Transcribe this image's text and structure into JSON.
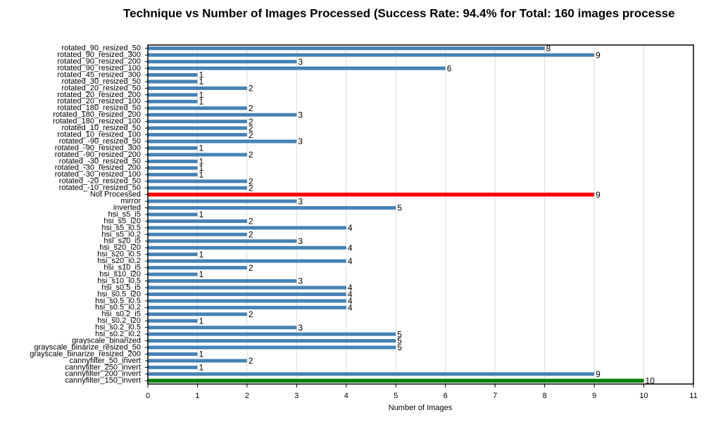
{
  "chart_data": {
    "type": "barh",
    "title": "Technique vs Number of Images Processed (Success Rate: 94.4% for Total: 160 images processe",
    "xlabel": "Number of Images",
    "categories": [
      "rotated_90_resized_50",
      "rotated_90_resized_300",
      "rotated_90_resized_200",
      "rotated_90_resized_100",
      "rotated_45_resized_300",
      "rotated_30_resized_50",
      "rotated_20_resized_50",
      "rotated_20_resized_200",
      "rotated_20_resized_100",
      "rotated_180_resized_50",
      "rotated_180_resized_200",
      "rotated_180_resized_100",
      "rotated_10_resized_50",
      "rotated_10_resized_100",
      "rotated_-90_resized_50",
      "rotated_-90_resized_300",
      "rotated_-90_resized_200",
      "rotated_-30_resized_50",
      "rotated_-30_resized_200",
      "rotated_-30_resized_100",
      "rotated_-20_resized_50",
      "rotated_-10_resized_50",
      "Not Processed",
      "mirror",
      "inverted",
      "hsi_s5_i5",
      "hsi_s5_i20",
      "hsi_s5_i0.5",
      "hsi_s5_i0.2",
      "hsi_s20_i5",
      "hsi_s20_i20",
      "hsi_s20_i0.5",
      "hsi_s20_i0.2",
      "hsi_s10_i5",
      "hsi_s10_i20",
      "hsi_s10_i0.5",
      "hsi_s0.5_i5",
      "hsi_s0.5_i20",
      "hsi_s0.5_i0.5",
      "hsi_s0.5_i0.2",
      "hsi_s0.2_i5",
      "hsi_s0.2_i20",
      "hsi_s0.2_i0.5",
      "hsi_s0.2_i0.2",
      "grayscale_binarized",
      "grayscale_binarize_resized_50",
      "grayscale_binarize_resized_200",
      "cannyfilter_50_invert",
      "cannyfilter_250_invert",
      "cannyfilter_200_invert",
      "cannyfilter_150_invert"
    ],
    "values": [
      8,
      9,
      3,
      6,
      1,
      1,
      2,
      1,
      1,
      2,
      3,
      2,
      2,
      2,
      3,
      1,
      2,
      1,
      1,
      1,
      2,
      2,
      9,
      3,
      5,
      1,
      2,
      4,
      2,
      3,
      4,
      1,
      4,
      2,
      1,
      3,
      4,
      4,
      4,
      4,
      2,
      1,
      3,
      5,
      5,
      5,
      1,
      2,
      1,
      9,
      10
    ],
    "color": "#4682b4",
    "highlight_colors": {
      "Not Processed": "#ff0000",
      "cannyfilter_150_invert": "#008000"
    },
    "xlim": [
      0,
      11
    ],
    "xticks": [
      0,
      1,
      2,
      3,
      4,
      5,
      6,
      7,
      8,
      9,
      10,
      11
    ],
    "grid": true
  }
}
